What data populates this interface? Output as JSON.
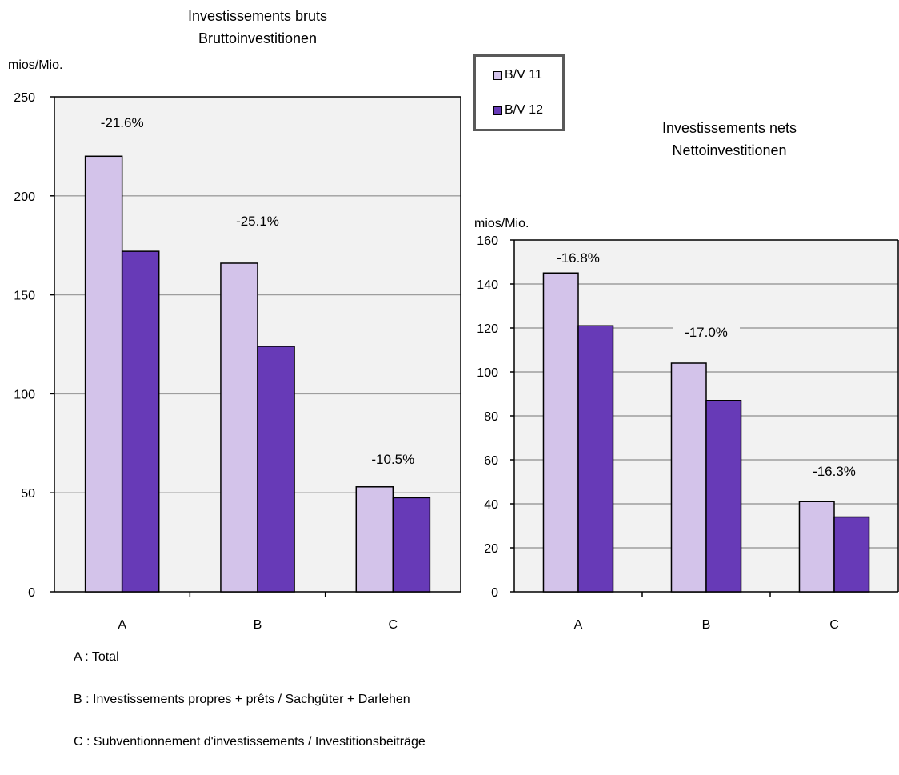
{
  "colors": {
    "series1": "#d3c3ea",
    "series2": "#673ab7",
    "plot_bg": "#f2f2f2",
    "grid": "#9e9e9e"
  },
  "legend": {
    "items": [
      "B/V 11",
      "B/V 12"
    ]
  },
  "notes": [
    "A : Total",
    "B : Investissements propres + prêts / Sachgüter + Darlehen",
    "C : Subventionnement d'investissements / Investitionsbeiträge"
  ],
  "chart_data": [
    {
      "type": "bar",
      "title": [
        "Investissements bruts",
        "Bruttoinvestitionen"
      ],
      "ylabel": "mios/Mio.",
      "categories": [
        "A",
        "B",
        "C"
      ],
      "series": [
        {
          "name": "B/V 11",
          "values": [
            220,
            166,
            53
          ]
        },
        {
          "name": "B/V 12",
          "values": [
            172,
            124,
            47.5
          ]
        }
      ],
      "annotations": [
        "-21.6%",
        "-25.1%",
        "-10.5%"
      ],
      "ylim": [
        0,
        250
      ],
      "yticks": [
        0,
        50,
        100,
        150,
        200,
        250
      ],
      "grid": true
    },
    {
      "type": "bar",
      "title": [
        "Investissements nets",
        "Nettoinvestitionen"
      ],
      "ylabel": "mios/Mio.",
      "categories": [
        "A",
        "B",
        "C"
      ],
      "series": [
        {
          "name": "B/V 11",
          "values": [
            145,
            104,
            41
          ]
        },
        {
          "name": "B/V 12",
          "values": [
            121,
            87,
            34
          ]
        }
      ],
      "annotations": [
        "-16.8%",
        "-17.0%",
        "-16.3%"
      ],
      "ylim": [
        0,
        160
      ],
      "yticks": [
        0,
        20,
        40,
        60,
        80,
        100,
        120,
        140,
        160
      ],
      "grid": true
    }
  ]
}
